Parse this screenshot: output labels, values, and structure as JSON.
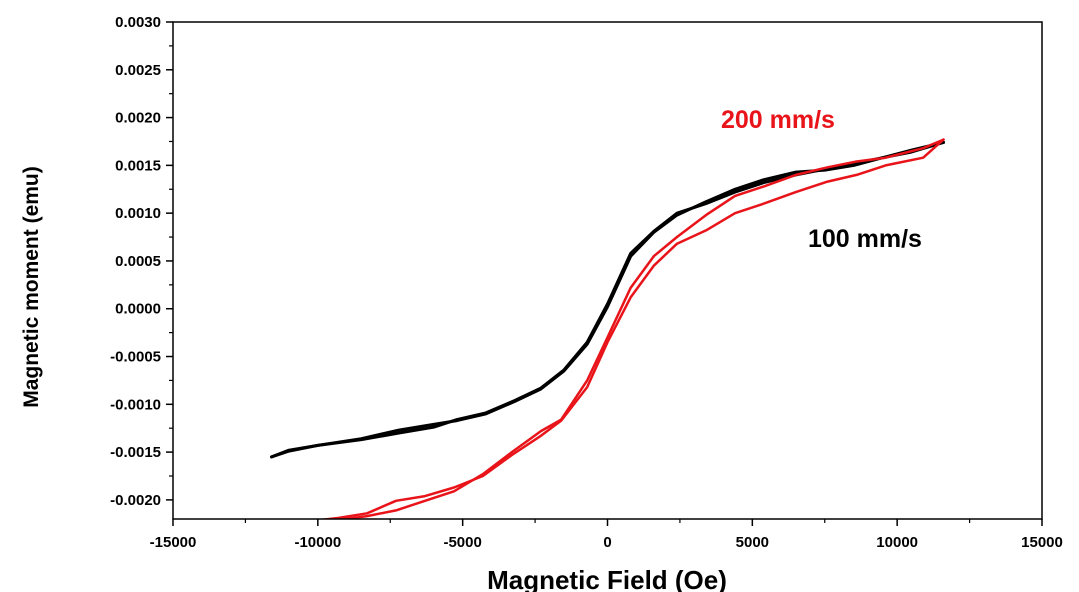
{
  "chart_data": {
    "type": "line",
    "xlabel": "Magnetic Field (Oe)",
    "ylabel": "Magnetic moment (emu)",
    "xlim": [
      -15000,
      15000
    ],
    "ylim": [
      -0.0022,
      0.003
    ],
    "x_ticks": [
      -15000,
      -10000,
      -5000,
      0,
      5000,
      10000,
      15000
    ],
    "x_tick_labels": [
      "-15000",
      "-10000",
      "-5000",
      "0",
      "5000",
      "10000",
      "15000"
    ],
    "y_ticks": [
      -0.002,
      -0.0015,
      -0.001,
      -0.0005,
      0.0,
      0.0005,
      0.001,
      0.0015,
      0.002,
      0.0025,
      0.003
    ],
    "y_tick_labels": [
      "-0.0020",
      "-0.0015",
      "-0.0010",
      "-0.0005",
      "0.0000",
      "0.0005",
      "0.0010",
      "0.0015",
      "0.0020",
      "0.0025",
      "0.0030"
    ],
    "grid": false,
    "annotations": [
      "200 mm/s",
      "100 mm/s"
    ],
    "series": [
      {
        "name": "100 mm/s",
        "color": "#000000",
        "branches": [
          [
            [
              -11600,
              -0.00155
            ],
            [
              -11000,
              -0.00148
            ],
            [
              -10000,
              -0.00143
            ],
            [
              -8500,
              -0.00137
            ],
            [
              -7200,
              -0.0013
            ],
            [
              -6000,
              -0.00124
            ],
            [
              -5200,
              -0.00116
            ],
            [
              -4200,
              -0.00109
            ],
            [
              -3200,
              -0.00096
            ],
            [
              -2300,
              -0.00083
            ],
            [
              -1500,
              -0.00064
            ],
            [
              -700,
              -0.00035
            ],
            [
              0,
              5e-05
            ],
            [
              800,
              0.00058
            ],
            [
              1600,
              0.00081
            ],
            [
              2400,
              0.001
            ],
            [
              3400,
              0.0011
            ],
            [
              4400,
              0.00122
            ],
            [
              5400,
              0.00132
            ],
            [
              6500,
              0.0014
            ],
            [
              7500,
              0.00146
            ],
            [
              8500,
              0.00152
            ],
            [
              9500,
              0.00158
            ],
            [
              10500,
              0.00164
            ],
            [
              11600,
              0.00174
            ]
          ],
          [
            [
              11600,
              0.00174
            ],
            [
              10500,
              0.00166
            ],
            [
              9500,
              0.00158
            ],
            [
              8500,
              0.0015
            ],
            [
              7500,
              0.00145
            ],
            [
              6500,
              0.00143
            ],
            [
              5400,
              0.00135
            ],
            [
              4400,
              0.00125
            ],
            [
              3400,
              0.00112
            ],
            [
              2400,
              0.00098
            ],
            [
              1600,
              0.0008
            ],
            [
              800,
              0.00055
            ],
            [
              0,
              2e-05
            ],
            [
              -700,
              -0.00037
            ],
            [
              -1500,
              -0.00065
            ],
            [
              -2300,
              -0.00084
            ],
            [
              -3200,
              -0.00097
            ],
            [
              -4200,
              -0.0011
            ],
            [
              -5200,
              -0.00117
            ],
            [
              -6000,
              -0.00121
            ],
            [
              -7200,
              -0.00127
            ],
            [
              -8500,
              -0.00136
            ],
            [
              -10000,
              -0.00143
            ],
            [
              -11000,
              -0.00149
            ],
            [
              -11600,
              -0.00155
            ]
          ]
        ]
      },
      {
        "name": "200 mm/s",
        "color": "#e8141a",
        "branches": [
          [
            [
              -10200,
              -0.00222
            ],
            [
              -9300,
              -0.00219
            ],
            [
              -8300,
              -0.00214
            ],
            [
              -7300,
              -0.00201
            ],
            [
              -6300,
              -0.00196
            ],
            [
              -5300,
              -0.00187
            ],
            [
              -4300,
              -0.00175
            ],
            [
              -3300,
              -0.00153
            ],
            [
              -2300,
              -0.00133
            ],
            [
              -1600,
              -0.00117
            ],
            [
              -700,
              -0.00082
            ],
            [
              0,
              -0.00035
            ],
            [
              800,
              0.00012
            ],
            [
              1600,
              0.00045
            ],
            [
              2400,
              0.00068
            ],
            [
              3400,
              0.00082
            ],
            [
              4400,
              0.001
            ],
            [
              5400,
              0.0011
            ],
            [
              6500,
              0.00122
            ],
            [
              7600,
              0.00133
            ],
            [
              8600,
              0.0014
            ],
            [
              9600,
              0.0015
            ],
            [
              10900,
              0.00158
            ],
            [
              11600,
              0.00177
            ]
          ],
          [
            [
              11600,
              0.00177
            ],
            [
              10900,
              0.00168
            ],
            [
              9600,
              0.00158
            ],
            [
              8600,
              0.00154
            ],
            [
              7600,
              0.00148
            ],
            [
              6500,
              0.0014
            ],
            [
              5400,
              0.00128
            ],
            [
              4400,
              0.00118
            ],
            [
              3400,
              0.00098
            ],
            [
              2400,
              0.00075
            ],
            [
              1600,
              0.00055
            ],
            [
              800,
              0.00022
            ],
            [
              0,
              -0.0003
            ],
            [
              -700,
              -0.00075
            ],
            [
              -1600,
              -0.00116
            ],
            [
              -2300,
              -0.00128
            ],
            [
              -3300,
              -0.0015
            ],
            [
              -4300,
              -0.00173
            ],
            [
              -5300,
              -0.00191
            ],
            [
              -6300,
              -0.00201
            ],
            [
              -7300,
              -0.00211
            ],
            [
              -8300,
              -0.00217
            ],
            [
              -9300,
              -0.00221
            ],
            [
              -10200,
              -0.00224
            ]
          ]
        ]
      }
    ]
  },
  "colors": {
    "axis": "#000000",
    "series_100": "#000000",
    "series_200": "#e8141a"
  }
}
